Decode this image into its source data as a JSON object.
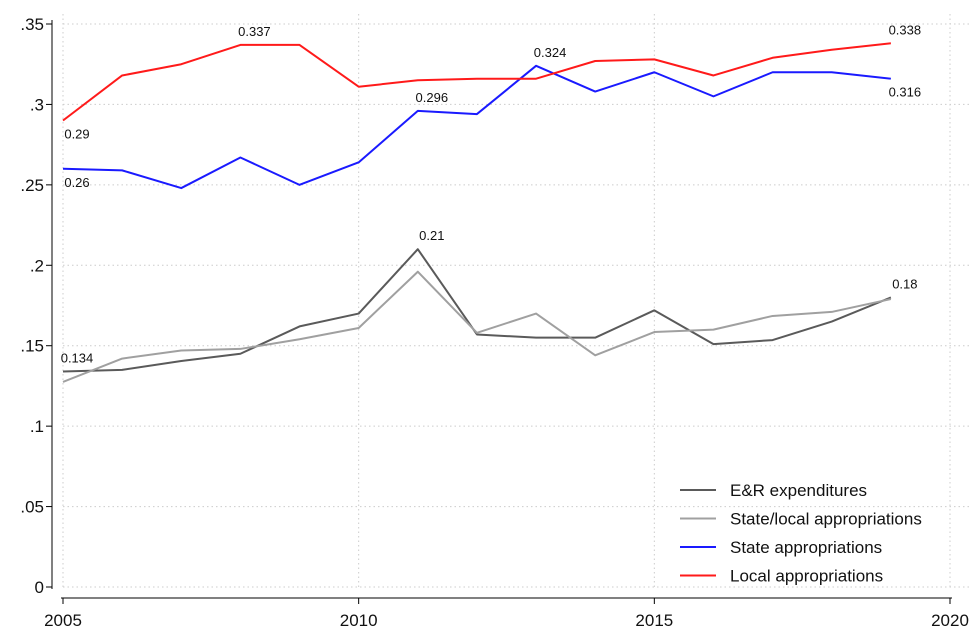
{
  "chart_data": {
    "type": "line",
    "x": [
      2005,
      2006,
      2007,
      2008,
      2009,
      2010,
      2011,
      2012,
      2013,
      2014,
      2015,
      2016,
      2017,
      2018,
      2019
    ],
    "series": [
      {
        "name": "E&R expenditures",
        "color": "#5a5a5a",
        "values": [
          0.134,
          0.135,
          0.1405,
          0.145,
          0.162,
          0.17,
          0.21,
          0.157,
          0.155,
          0.155,
          0.172,
          0.151,
          0.1535,
          0.165,
          0.18
        ],
        "value_labels": [
          "0.134",
          null,
          null,
          null,
          null,
          null,
          "0.21",
          null,
          null,
          null,
          null,
          null,
          null,
          null,
          "0.18"
        ]
      },
      {
        "name": "State/local appropriations",
        "color": "#a0a0a0",
        "values": [
          0.1275,
          0.142,
          0.147,
          0.148,
          0.154,
          0.161,
          0.196,
          0.158,
          0.17,
          0.144,
          0.1585,
          0.16,
          0.1685,
          0.171,
          0.179
        ]
      },
      {
        "name": "State appropriations",
        "color": "#1a1aff",
        "values": [
          0.26,
          0.259,
          0.248,
          0.267,
          0.25,
          0.264,
          0.296,
          0.294,
          0.324,
          0.308,
          0.32,
          0.305,
          0.32,
          0.32,
          0.316
        ],
        "value_labels": [
          "0.26",
          null,
          null,
          null,
          null,
          null,
          "0.296",
          null,
          "0.324",
          null,
          null,
          null,
          null,
          null,
          "0.316"
        ]
      },
      {
        "name": "Local appropriations",
        "color": "#ff1a1a",
        "values": [
          0.29,
          0.318,
          0.325,
          0.337,
          0.337,
          0.311,
          0.315,
          0.316,
          0.316,
          0.327,
          0.328,
          0.318,
          0.329,
          0.334,
          0.338
        ],
        "value_labels": [
          "0.29",
          null,
          null,
          "0.337",
          null,
          null,
          null,
          null,
          null,
          null,
          null,
          null,
          null,
          null,
          "0.338"
        ]
      }
    ],
    "xlim": [
      2005,
      2020
    ],
    "xticks": [
      2005,
      2010,
      2015,
      2020
    ],
    "ylim": [
      0,
      0.35
    ],
    "yticks": [
      0,
      {
        "value": 0.05,
        "label": ".05"
      },
      {
        "value": 0.1,
        "label": ".1"
      },
      {
        "value": 0.15,
        "label": ".15"
      },
      {
        "value": 0.2,
        "label": ".2"
      },
      {
        "value": 0.25,
        "label": ".25"
      },
      {
        "value": 0.3,
        "label": ".3"
      },
      {
        "value": 0.35,
        "label": ".35"
      }
    ],
    "grid": true,
    "legend": "lower right"
  }
}
